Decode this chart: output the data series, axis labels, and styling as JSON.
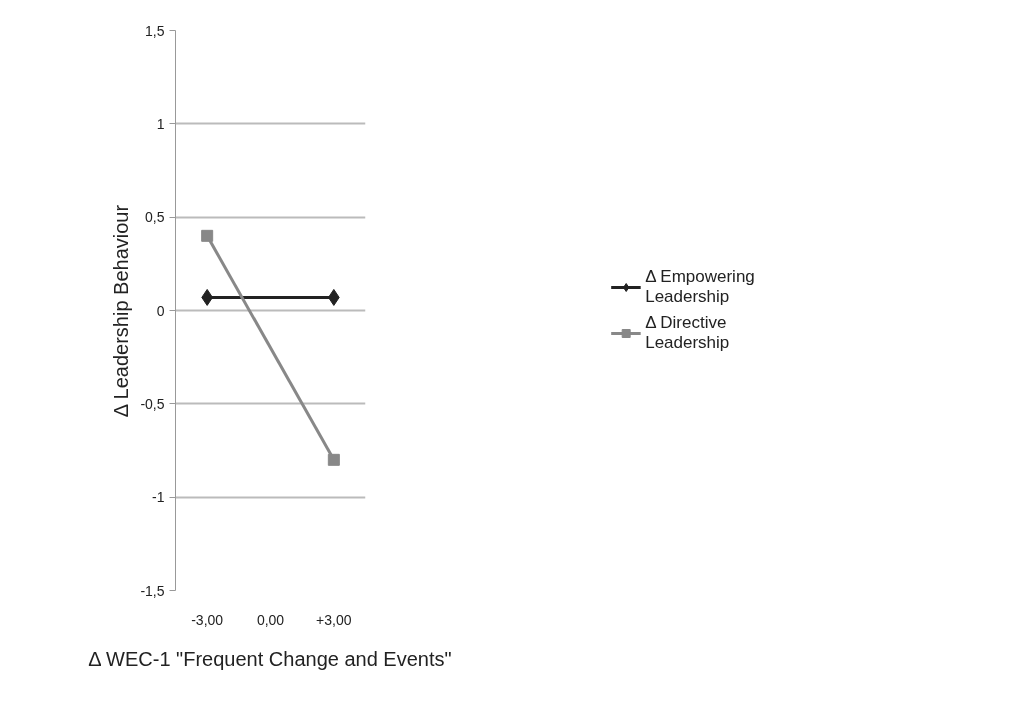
{
  "chart_data": {
    "type": "line",
    "xlabel": "Δ WEC-1 \"Frequent Change and Events\"",
    "ylabel": "Δ Leadership Behaviour",
    "categories": [
      "-3,00",
      "0,00",
      "+3,00"
    ],
    "series": [
      {
        "name": "Δ Empowering Leadership",
        "color": "#222222",
        "marker": "diamond",
        "values": [
          0.07,
          null,
          0.07
        ]
      },
      {
        "name": "Δ Directive Leadership",
        "color": "#888888",
        "marker": "square",
        "values": [
          0.4,
          null,
          -0.8
        ]
      }
    ],
    "ylim": [
      -1.5,
      1.5
    ],
    "yticks": [
      {
        "value": -1.5,
        "label": "-1,5"
      },
      -1,
      {
        "value": -0.5,
        "label": "-0,5"
      },
      0,
      {
        "value": 0.5,
        "label": "0,5"
      },
      1,
      {
        "value": 1.5,
        "label": "1,5"
      }
    ],
    "grid": "y",
    "legend": "right"
  }
}
